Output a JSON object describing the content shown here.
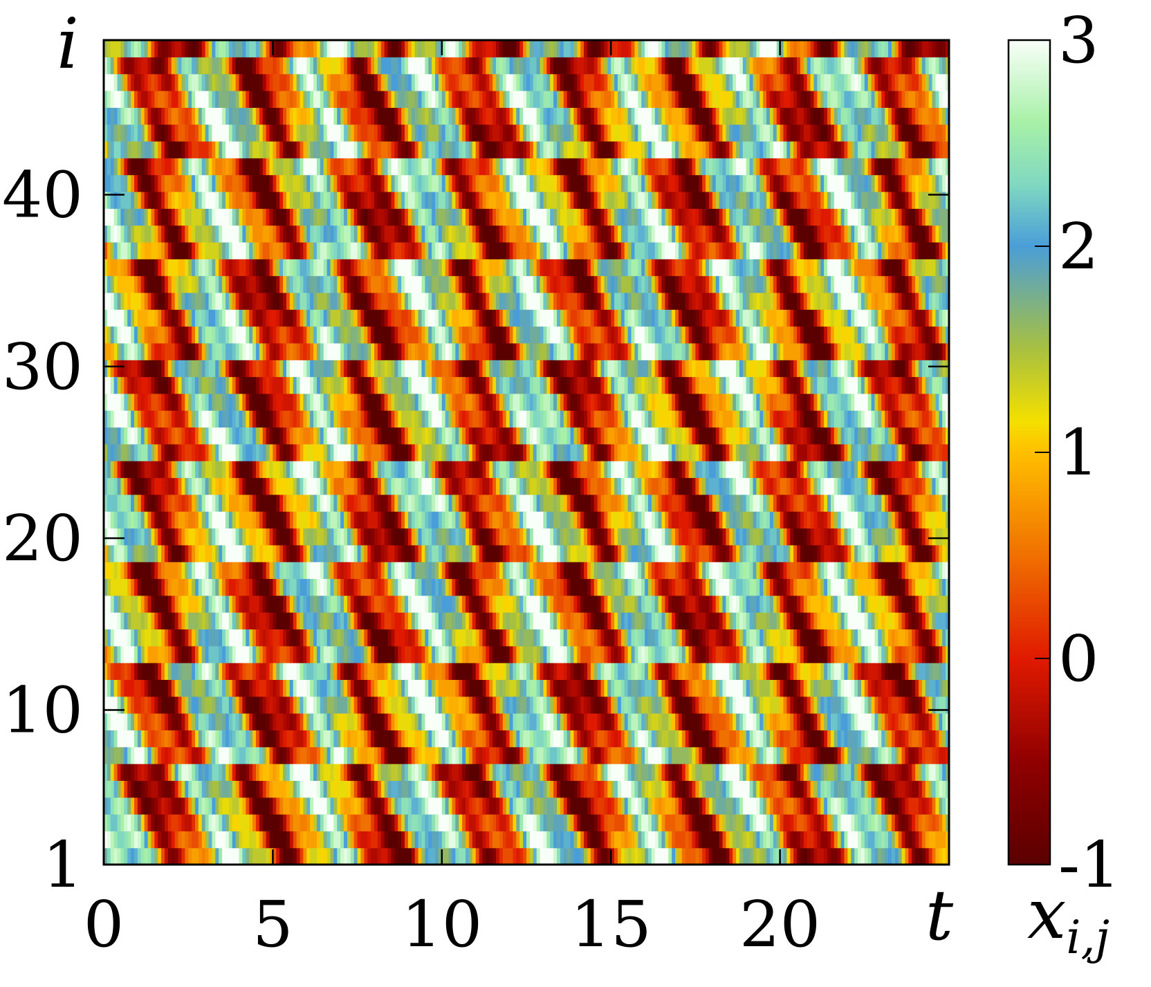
{
  "chart_data": {
    "type": "heatmap",
    "title": "",
    "xlabel": "t",
    "ylabel": "i",
    "colorbar_label": "x_{i,j}",
    "colorbar_label_main": "x",
    "colorbar_label_sub": "i,j",
    "xlim": [
      0,
      25
    ],
    "ylim": [
      1,
      49
    ],
    "x_ticks": [
      0,
      5,
      10,
      15,
      20
    ],
    "x_tick_labels": [
      "0",
      "5",
      "10",
      "15",
      "20"
    ],
    "y_ticks": [
      1,
      10,
      20,
      30,
      40
    ],
    "y_tick_labels": [
      "1",
      "10",
      "20",
      "30",
      "40"
    ],
    "color_range": [
      -1,
      3
    ],
    "colorbar_ticks": [
      -1,
      0,
      1,
      2,
      3
    ],
    "colorbar_tick_labels": [
      "-1",
      "0",
      "1",
      "2",
      "3"
    ],
    "colormap": [
      {
        "value": -1.0,
        "color": "#5a0000"
      },
      {
        "value": -0.5,
        "color": "#900000"
      },
      {
        "value": 0.0,
        "color": "#e01a00"
      },
      {
        "value": 0.5,
        "color": "#f07000"
      },
      {
        "value": 1.0,
        "color": "#ffbf00"
      },
      {
        "value": 1.15,
        "color": "#f4e000"
      },
      {
        "value": 1.5,
        "color": "#a8c040"
      },
      {
        "value": 2.0,
        "color": "#4a9ed8"
      },
      {
        "value": 2.3,
        "color": "#80d8c0"
      },
      {
        "value": 2.6,
        "color": "#a8f0a8"
      },
      {
        "value": 3.0,
        "color": "#f8fff8"
      }
    ],
    "grid": false,
    "pattern_note_rows": 49,
    "time_samples": 250
  }
}
